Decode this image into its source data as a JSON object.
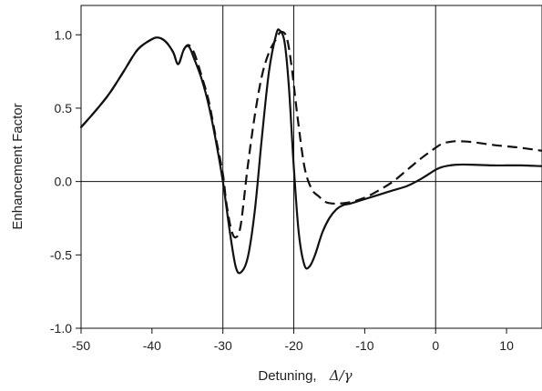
{
  "chart_data": {
    "type": "line",
    "title": "",
    "xlabel": "Detuning,",
    "xlabel_symbol": "Δ/γ",
    "ylabel": "Enhancement Factor",
    "xlim": [
      -50,
      15
    ],
    "ylim": [
      -1.0,
      1.2
    ],
    "x_ticks": [
      -50,
      -40,
      -30,
      -20,
      -10,
      0,
      10
    ],
    "x_tick_labels": [
      "-50",
      "-40",
      "-30",
      "-20",
      "-10",
      "0",
      "10"
    ],
    "y_ticks": [
      -1.0,
      -0.5,
      0.0,
      0.5,
      1.0
    ],
    "y_tick_labels": [
      "-1.0",
      "-0.5",
      "0.0",
      "0.5",
      "1.0"
    ],
    "reference_lines": {
      "vertical": [
        -30,
        -20,
        0
      ],
      "horizontal": [
        0
      ]
    },
    "grid": false,
    "legend": "none",
    "series": [
      {
        "style": "solid",
        "color": "#111111",
        "x": [
          -50,
          -48,
          -46,
          -44,
          -42,
          -40,
          -39,
          -38,
          -37,
          -36.3,
          -35.5,
          -34.8,
          -34,
          -33,
          -32,
          -31,
          -30,
          -29,
          -28.2,
          -27.5,
          -26.5,
          -25.5,
          -24.5,
          -23.5,
          -22.5,
          -22,
          -21.3,
          -20.7,
          -20,
          -19.3,
          -18.5,
          -17.8,
          -17,
          -16,
          -15,
          -14,
          -13,
          -12,
          -10,
          -8,
          -6,
          -4,
          -2,
          0,
          1,
          2,
          3,
          5,
          8,
          10,
          12,
          15
        ],
        "y": [
          0.37,
          0.48,
          0.6,
          0.75,
          0.9,
          0.97,
          0.98,
          0.95,
          0.88,
          0.8,
          0.9,
          0.92,
          0.83,
          0.7,
          0.52,
          0.28,
          0.0,
          -0.35,
          -0.58,
          -0.62,
          -0.52,
          -0.2,
          0.3,
          0.75,
          1.0,
          1.03,
          0.95,
          0.65,
          0.1,
          -0.35,
          -0.57,
          -0.58,
          -0.5,
          -0.35,
          -0.25,
          -0.19,
          -0.16,
          -0.15,
          -0.12,
          -0.09,
          -0.06,
          -0.03,
          0.02,
          0.08,
          0.1,
          0.11,
          0.115,
          0.115,
          0.11,
          0.11,
          0.11,
          0.105
        ]
      },
      {
        "style": "dashed",
        "color": "#111111",
        "x": [
          -50,
          -48,
          -46,
          -44,
          -42,
          -40,
          -39,
          -38,
          -37,
          -36.3,
          -35.5,
          -34.8,
          -34,
          -33,
          -32,
          -31,
          -30,
          -29.5,
          -28.8,
          -28.2,
          -27.5,
          -26.5,
          -25.5,
          -24.5,
          -23.5,
          -22.5,
          -21.8,
          -21,
          -20.3,
          -19.5,
          -18.5,
          -17.5,
          -16.5,
          -15.5,
          -14.5,
          -13.5,
          -12,
          -10,
          -8,
          -6,
          -4,
          -2,
          0,
          1,
          2,
          3,
          5,
          8,
          10,
          12,
          15
        ],
        "y": [
          0.37,
          0.48,
          0.6,
          0.75,
          0.9,
          0.97,
          0.98,
          0.95,
          0.88,
          0.8,
          0.9,
          0.93,
          0.87,
          0.72,
          0.55,
          0.3,
          0.05,
          -0.15,
          -0.33,
          -0.38,
          -0.3,
          0.1,
          0.45,
          0.72,
          0.88,
          0.97,
          1.02,
          0.98,
          0.78,
          0.45,
          0.1,
          -0.05,
          -0.1,
          -0.14,
          -0.15,
          -0.15,
          -0.14,
          -0.11,
          -0.06,
          0.0,
          0.08,
          0.16,
          0.23,
          0.26,
          0.27,
          0.275,
          0.27,
          0.25,
          0.24,
          0.23,
          0.21
        ]
      }
    ]
  }
}
